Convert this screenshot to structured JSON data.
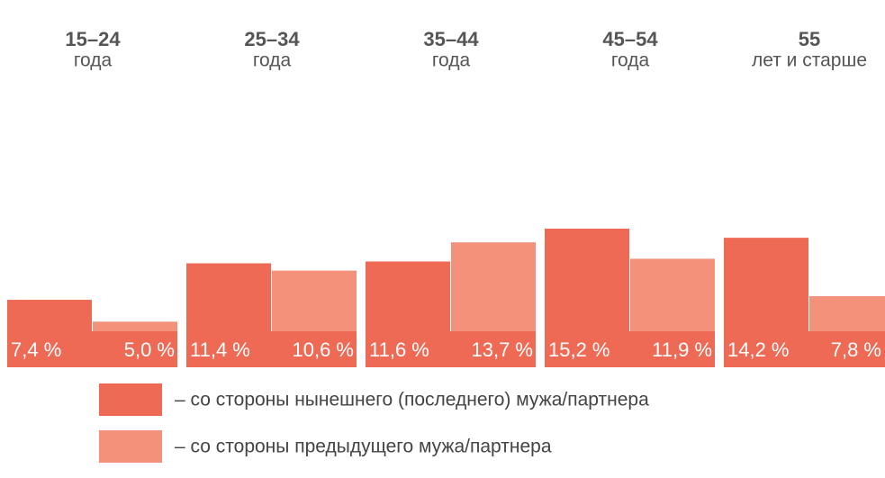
{
  "chart_data": {
    "type": "bar",
    "categories": [
      "15–24",
      "25–34",
      "35–44",
      "45–54",
      "55"
    ],
    "category_subtitles": [
      "года",
      "года",
      "года",
      "года",
      "лет и старше"
    ],
    "series": [
      {
        "name": "– со стороны нынешнего (последнего) мужа/партнера",
        "color": "#ee6a55",
        "values": [
          7.4,
          11.4,
          11.6,
          15.2,
          14.2
        ],
        "value_labels": [
          "7,4 %",
          "11,4 %",
          "11,6 %",
          "15,2 %",
          "14,2 %"
        ]
      },
      {
        "name": "– со стороны предыдущего мужа/партнера",
        "color": "#f4917b",
        "values": [
          5.0,
          10.6,
          13.7,
          11.9,
          7.8
        ],
        "value_labels": [
          "5,0 %",
          "10,6 %",
          "13,7 %",
          "11,9 %",
          "7,8 %"
        ]
      }
    ]
  }
}
